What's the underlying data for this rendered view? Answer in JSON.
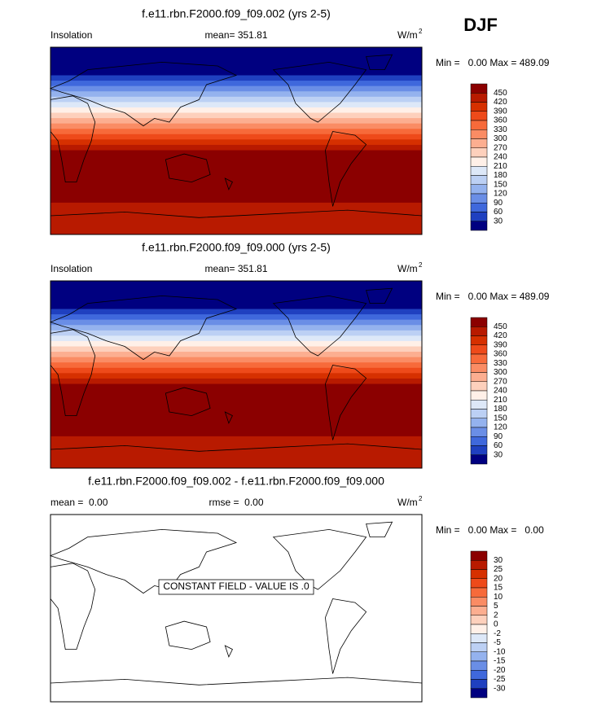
{
  "header": {
    "season": "DJF"
  },
  "panels": [
    {
      "title": "f.e11.rbn.F2000.f09_f09.002 (yrs 2-5)",
      "left": "Insolation",
      "center": "mean= 351.81",
      "units": "W/m",
      "units_exponent": "2",
      "range": "Min =   0.00 Max = 489.09",
      "colorbar": {
        "levels": [
          450,
          420,
          390,
          360,
          330,
          300,
          270,
          240,
          210,
          180,
          150,
          120,
          90,
          60,
          30
        ],
        "colors": [
          "#8b0000",
          "#b81a00",
          "#d63000",
          "#ee4a1a",
          "#f76a3a",
          "#fa8c64",
          "#fcae90",
          "#fdd0bc",
          "#fff0e8",
          "#dde8f8",
          "#bcd0f4",
          "#94b2ee",
          "#6a8ee6",
          "#3f68dc",
          "#1f40c0",
          "#000080"
        ]
      }
    },
    {
      "title": "f.e11.rbn.F2000.f09_f09.000 (yrs 2-5)",
      "left": "Insolation",
      "center": "mean= 351.81",
      "units": "W/m",
      "units_exponent": "2",
      "range": "Min =   0.00 Max = 489.09",
      "colorbar": {
        "levels": [
          450,
          420,
          390,
          360,
          330,
          300,
          270,
          240,
          210,
          180,
          150,
          120,
          90,
          60,
          30
        ],
        "colors": [
          "#8b0000",
          "#b81a00",
          "#d63000",
          "#ee4a1a",
          "#f76a3a",
          "#fa8c64",
          "#fcae90",
          "#fdd0bc",
          "#fff0e8",
          "#dde8f8",
          "#bcd0f4",
          "#94b2ee",
          "#6a8ee6",
          "#3f68dc",
          "#1f40c0",
          "#000080"
        ]
      }
    },
    {
      "title": "f.e11.rbn.F2000.f09_f09.002 - f.e11.rbn.F2000.f09_f09.000",
      "left": "mean =  0.00",
      "center": "rmse =  0.00",
      "units": "W/m",
      "units_exponent": "2",
      "range": "Min =   0.00 Max =   0.00",
      "annotation": "CONSTANT FIELD - VALUE IS .0",
      "colorbar": {
        "levels": [
          30,
          25,
          20,
          15,
          10,
          5,
          2,
          0,
          -2,
          -5,
          -10,
          -15,
          -20,
          -25,
          -30
        ],
        "colors": [
          "#8b0000",
          "#b81a00",
          "#d63000",
          "#ee4a1a",
          "#f76a3a",
          "#fa8c64",
          "#fcae90",
          "#fdd0bc",
          "#fff0e8",
          "#dde8f8",
          "#bcd0f4",
          "#94b2ee",
          "#6a8ee6",
          "#3f68dc",
          "#1f40c0",
          "#000080"
        ]
      }
    }
  ]
}
